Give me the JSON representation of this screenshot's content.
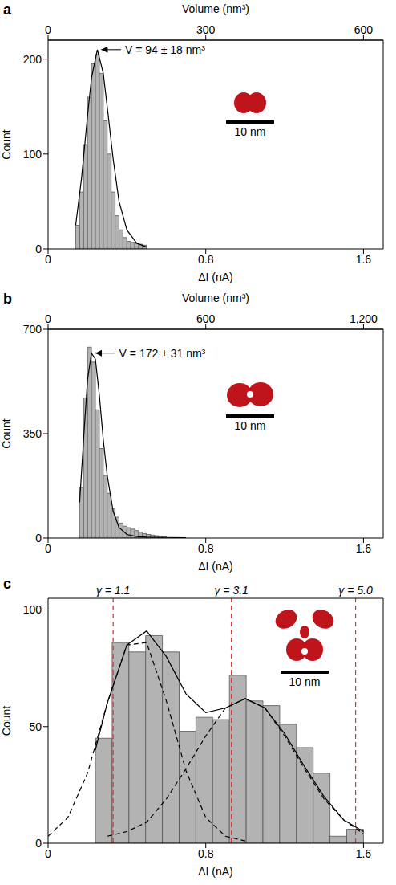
{
  "chart_data": [
    {
      "panel": "a",
      "type": "histogram",
      "x_label": "ΔI (nA)",
      "x2_label": "Volume (nm³)",
      "y_label": "Count",
      "xlim": [
        0,
        1.7
      ],
      "xticks": [
        0,
        0.8,
        1.6
      ],
      "x2lim": [
        0,
        637.5
      ],
      "x2ticks": [
        0,
        300,
        600
      ],
      "ylim": [
        0,
        220
      ],
      "yticks": [
        0,
        100,
        200
      ],
      "color": "#b3b3b3",
      "bins": [
        0.14,
        0.16,
        0.18,
        0.2,
        0.22,
        0.24,
        0.26,
        0.28,
        0.3,
        0.32,
        0.34,
        0.36,
        0.38,
        0.4,
        0.42,
        0.44,
        0.46,
        0.48,
        0.5
      ],
      "counts": [
        25,
        60,
        110,
        160,
        195,
        205,
        185,
        135,
        100,
        60,
        35,
        20,
        12,
        8,
        7,
        6,
        5,
        4
      ],
      "fits": [
        {
          "x": [
            0.14,
            0.17,
            0.2,
            0.22,
            0.25,
            0.28,
            0.3,
            0.33,
            0.36,
            0.4,
            0.45,
            0.5
          ],
          "y": [
            25,
            75,
            140,
            180,
            210,
            185,
            150,
            95,
            50,
            20,
            6,
            2
          ],
          "line_style": "solid",
          "color": "#000000"
        }
      ],
      "annotation": "V = 94 ± 18 nm³",
      "scale_bar": "10 nm"
    },
    {
      "panel": "b",
      "type": "histogram",
      "x_label": "ΔI (nA)",
      "x2_label": "Volume (nm³)",
      "y_label": "Count",
      "xlim": [
        0,
        1.7
      ],
      "xticks": [
        0,
        0.8,
        1.6
      ],
      "x2lim": [
        0,
        1275
      ],
      "x2ticks": [
        0,
        600,
        {
          "value": 1200,
          "label": "1,200"
        }
      ],
      "ylim": [
        0,
        700
      ],
      "yticks": [
        0,
        350,
        700
      ],
      "color": "#b3b3b3",
      "bins": [
        0.16,
        0.18,
        0.2,
        0.22,
        0.24,
        0.26,
        0.28,
        0.3,
        0.32,
        0.34,
        0.36,
        0.38,
        0.4,
        0.42,
        0.44,
        0.46,
        0.48,
        0.5,
        0.52,
        0.54,
        0.56,
        0.58,
        0.6
      ],
      "counts": [
        170,
        470,
        640,
        590,
        430,
        300,
        210,
        150,
        100,
        70,
        50,
        40,
        35,
        30,
        25,
        20,
        15,
        12,
        10,
        8,
        6,
        5
      ],
      "fits": [
        {
          "x": [
            0.16,
            0.18,
            0.2,
            0.22,
            0.24,
            0.26,
            0.28,
            0.3,
            0.33,
            0.36,
            0.4,
            0.45,
            0.5,
            0.6,
            0.7
          ],
          "y": [
            120,
            330,
            530,
            620,
            600,
            480,
            330,
            210,
            90,
            35,
            12,
            5,
            3,
            2,
            1
          ],
          "line_style": "solid",
          "color": "#000000"
        }
      ],
      "annotation": "V = 172 ± 31 nm³",
      "scale_bar": "10 nm"
    },
    {
      "panel": "c",
      "type": "histogram",
      "x_label": "ΔI (nA)",
      "y_label": "Count",
      "xlim": [
        0,
        1.7
      ],
      "xticks": [
        0,
        0.8,
        1.6
      ],
      "ylim": [
        0,
        105
      ],
      "yticks": [
        0,
        50,
        100
      ],
      "color": "#b3b3b3",
      "bins": [
        0.24,
        0.325,
        0.41,
        0.495,
        0.58,
        0.665,
        0.75,
        0.835,
        0.92,
        1.005,
        1.09,
        1.175,
        1.26,
        1.345,
        1.43,
        1.515,
        1.6
      ],
      "counts": [
        45,
        86,
        82,
        89,
        82,
        48,
        54,
        53,
        72,
        61,
        59,
        51,
        41,
        30,
        3,
        6
      ],
      "fits": [
        {
          "x": [
            0.24,
            0.3,
            0.4,
            0.5,
            0.6,
            0.7,
            0.8,
            0.9,
            1.0,
            1.1,
            1.2,
            1.3,
            1.4,
            1.5,
            1.6
          ],
          "y": [
            40,
            60,
            85,
            91,
            80,
            64,
            56,
            58,
            62,
            58,
            47,
            33,
            20,
            10,
            5
          ],
          "line_style": "solid",
          "color": "#000000"
        },
        {
          "x": [
            0,
            0.1,
            0.2,
            0.3,
            0.4,
            0.5,
            0.6,
            0.7,
            0.8,
            0.9,
            1.0
          ],
          "y": [
            3,
            11,
            30,
            60,
            85,
            86,
            61,
            31,
            11,
            3,
            1
          ],
          "line_style": "dashed",
          "color": "#000000"
        },
        {
          "x": [
            0.3,
            0.4,
            0.5,
            0.6,
            0.7,
            0.8,
            0.9,
            1.0,
            1.1,
            1.2,
            1.3,
            1.4,
            1.5,
            1.6
          ],
          "y": [
            3,
            5,
            9,
            19,
            32,
            46,
            58,
            62,
            58,
            46,
            32,
            19,
            10,
            4
          ],
          "line_style": "dashed",
          "color": "#000000"
        }
      ],
      "markers": [
        {
          "x": 0.33,
          "label": "γ = 1.1",
          "color": "#e03030",
          "line_style": "dashed"
        },
        {
          "x": 0.93,
          "label": "γ = 3.1",
          "color": "#e03030",
          "line_style": "dashed"
        },
        {
          "x": 1.56,
          "label": "γ = 5.0",
          "color": "#e03030",
          "line_style": "dashed"
        }
      ],
      "scale_bar": "10 nm"
    }
  ]
}
